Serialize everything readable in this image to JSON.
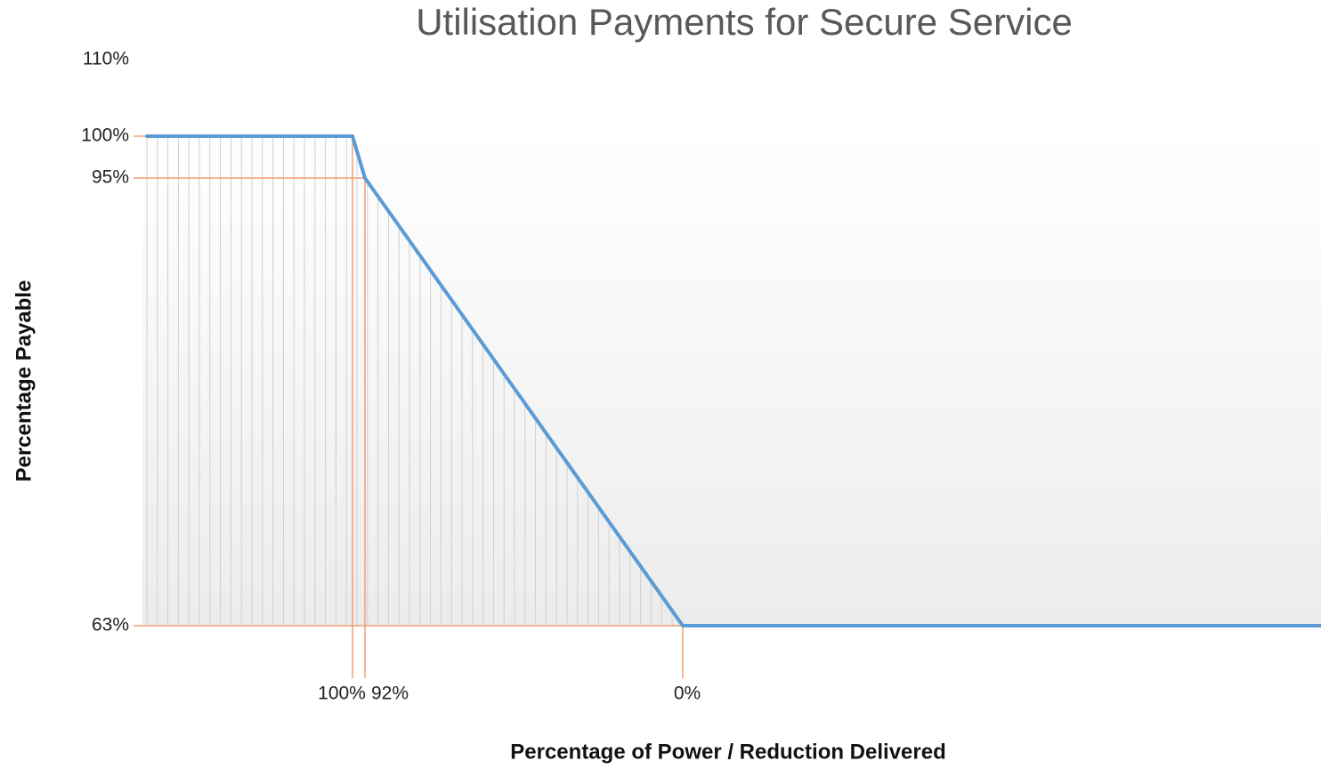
{
  "chart_data": {
    "type": "line",
    "title": "Utilisation Payments for Secure Service",
    "x_label": "Percentage of Power / Reduction Delivered",
    "y_label": "Percentage Payable",
    "categories": [
      null,
      "100%",
      "92%",
      "0%",
      null
    ],
    "series": [
      {
        "name": "Percentage Payable",
        "color": "#5b9bd5",
        "values": [
          100,
          100,
          95,
          63,
          63
        ]
      }
    ],
    "ylim": [
      63,
      110
    ],
    "yticks": [
      {
        "value": 63,
        "label": "63%"
      },
      {
        "value": 95,
        "label": "95%"
      },
      {
        "value": 100,
        "label": "100%"
      },
      {
        "value": 110,
        "label": "110%"
      }
    ],
    "reference_color": "#f0a070"
  }
}
